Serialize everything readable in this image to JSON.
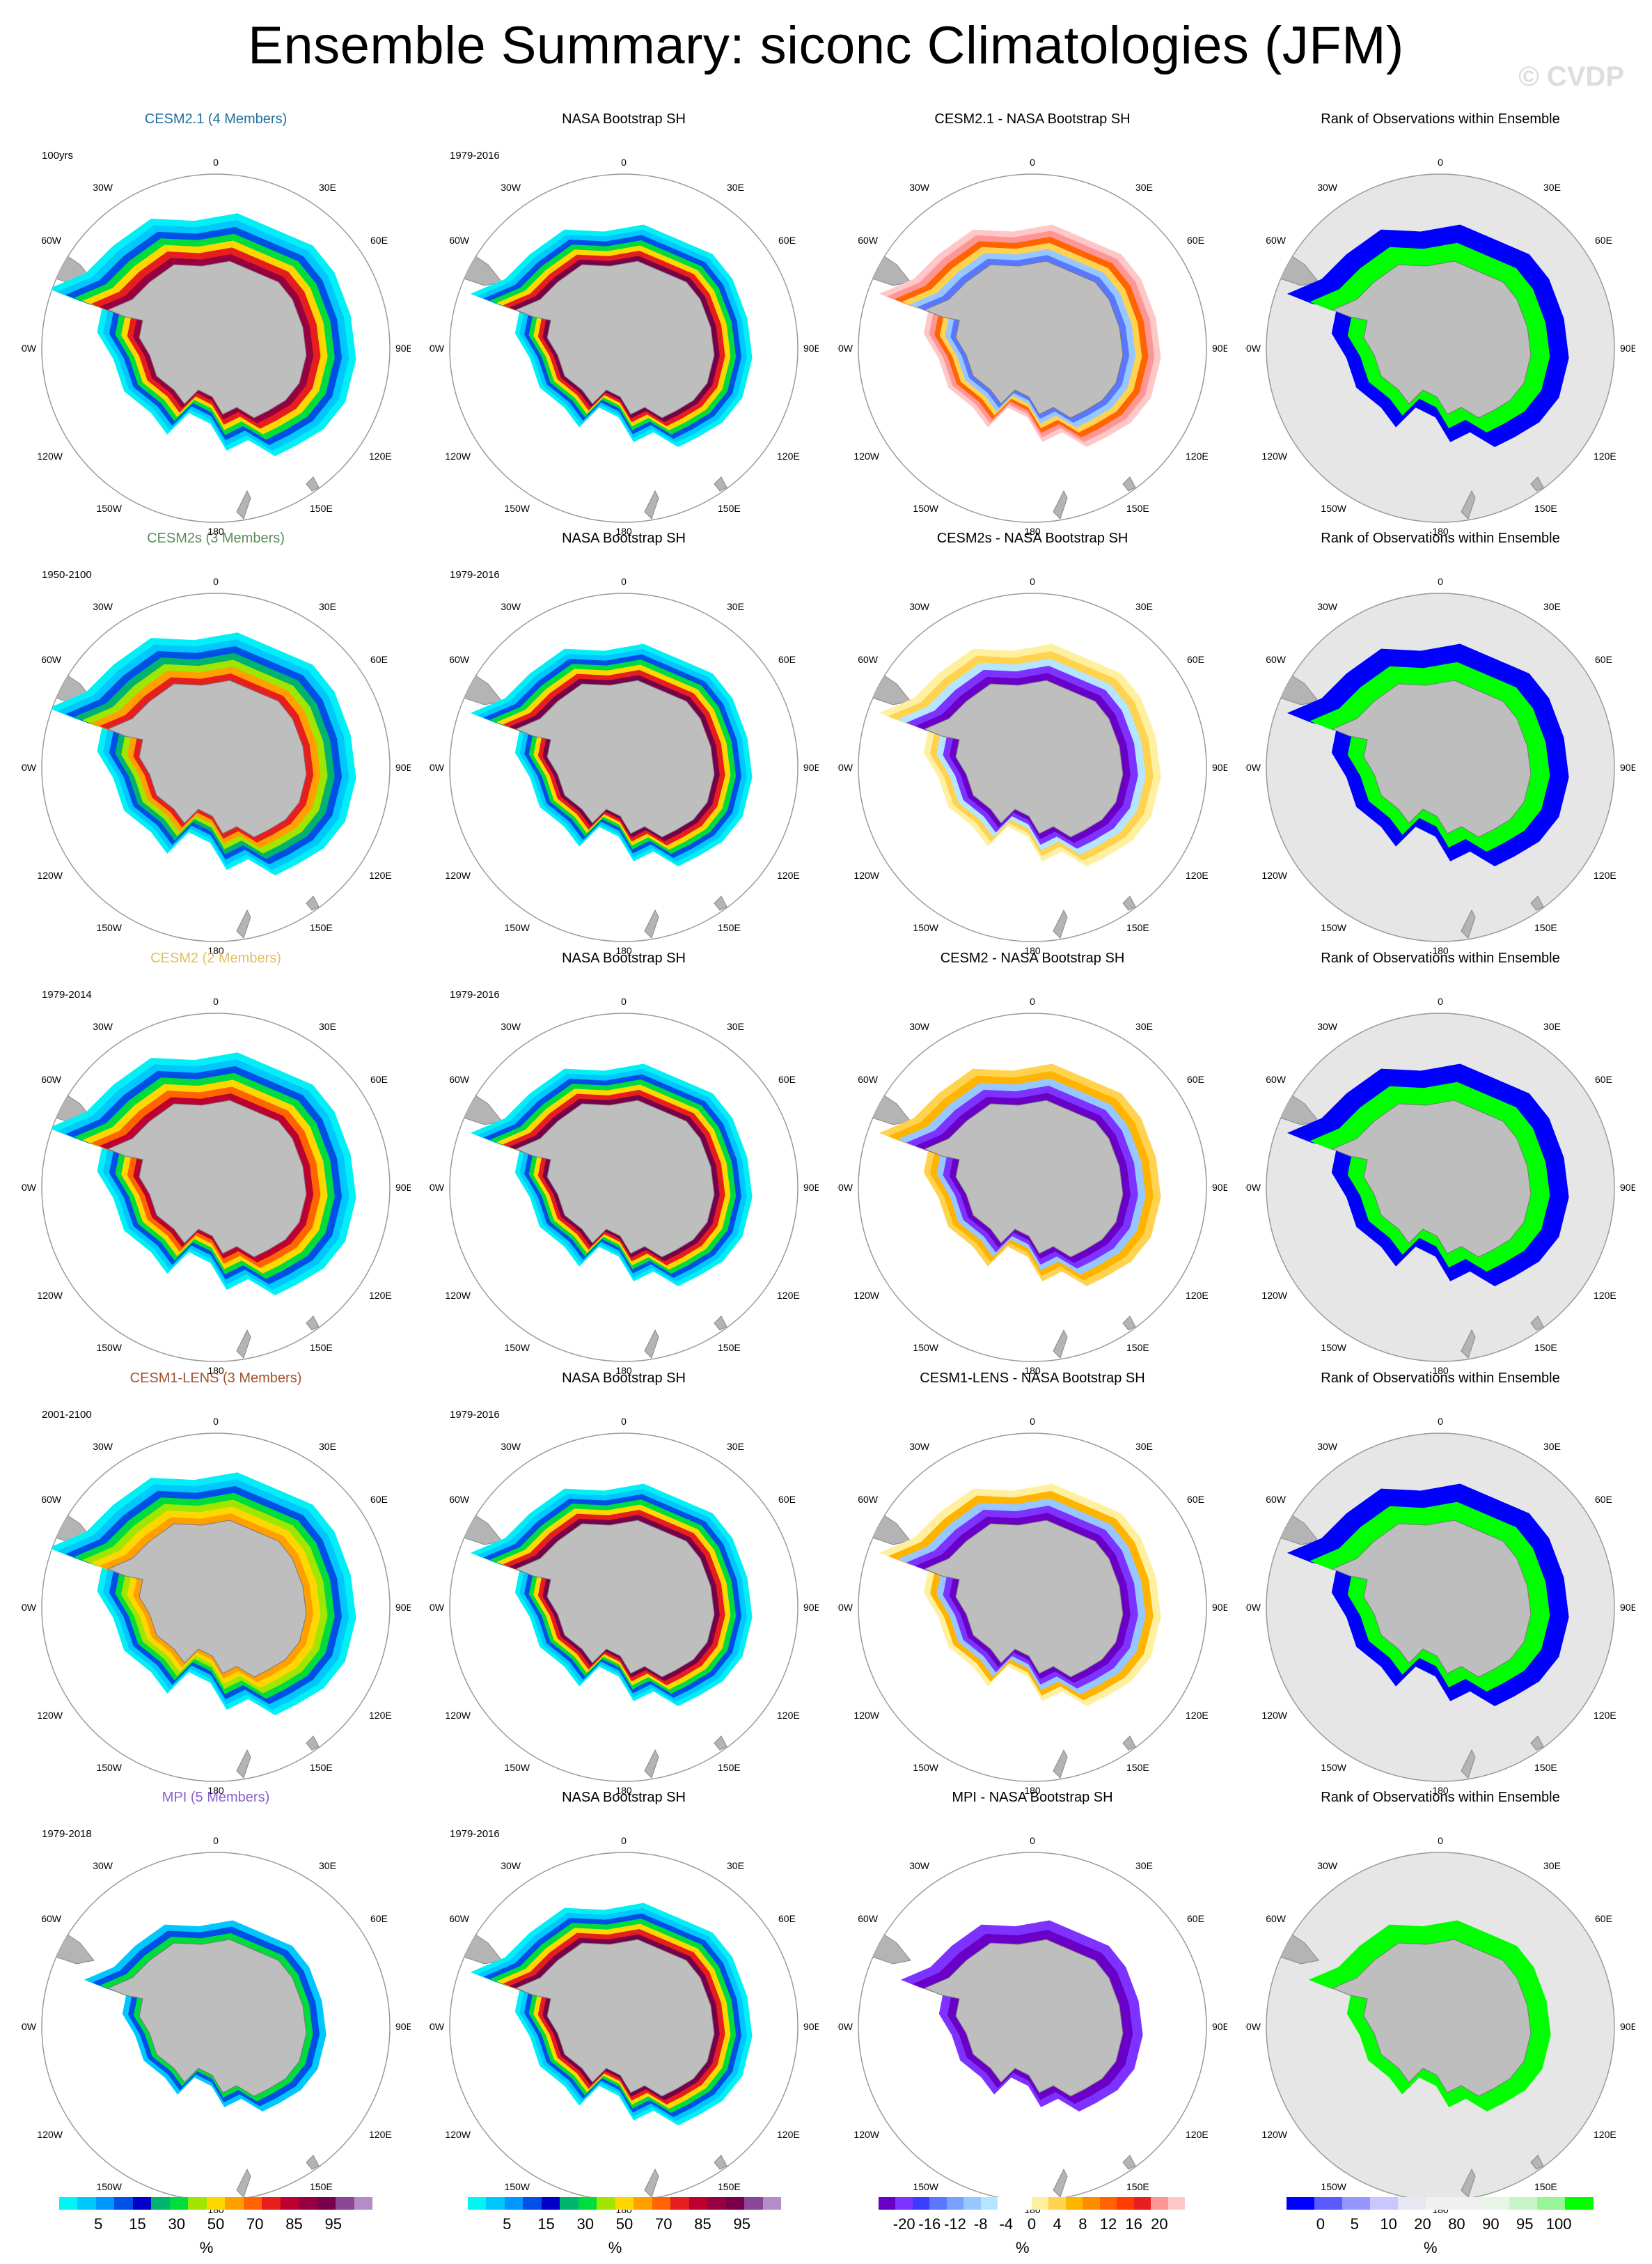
{
  "title": "Ensemble Summary: siconc Climatologies (JFM)",
  "watermark": "© CVDP",
  "longitude_labels": {
    "top": "0",
    "bottom": "180",
    "l1": "30W",
    "l2": "60W",
    "l3": "90W",
    "l4": "120W",
    "l5": "150W",
    "r1": "30E",
    "r2": "60E",
    "r3": "90E",
    "r4": "120E",
    "r5": "150E"
  },
  "rows": [
    {
      "model_title": "CESM2.1 (4 Members)",
      "model_color": "#1f6f9f",
      "model_period": "100yrs",
      "obs_title": "NASA Bootstrap SH",
      "obs_period": "1979-2016",
      "diff_title": "CESM2.1 - NASA Bootstrap SH",
      "rank_title": "Rank of Observations within Ensemble"
    },
    {
      "model_title": "CESM2s (3 Members)",
      "model_color": "#5b8c5a",
      "model_period": "1950-2100",
      "obs_title": "NASA Bootstrap SH",
      "obs_period": "1979-2016",
      "diff_title": "CESM2s - NASA Bootstrap SH",
      "rank_title": "Rank of Observations within Ensemble"
    },
    {
      "model_title": "CESM2 (2 Members)",
      "model_color": "#e0c060",
      "model_period": "1979-2014",
      "obs_title": "NASA Bootstrap SH",
      "obs_period": "1979-2016",
      "diff_title": "CESM2 - NASA Bootstrap SH",
      "rank_title": "Rank of Observations within Ensemble"
    },
    {
      "model_title": "CESM1-LENS (3 Members)",
      "model_color": "#a0522d",
      "model_period": "2001-2100",
      "obs_title": "NASA Bootstrap SH",
      "obs_period": "1979-2016",
      "diff_title": "CESM1-LENS - NASA Bootstrap SH",
      "rank_title": "Rank of Observations within Ensemble"
    },
    {
      "model_title": "MPI (5 Members)",
      "model_color": "#8a5fd0",
      "model_period": "1979-2018",
      "obs_title": "NASA Bootstrap SH",
      "obs_period": "1979-2016",
      "diff_title": "MPI - NASA Bootstrap SH",
      "rank_title": "Rank of Observations within Ensemble"
    }
  ],
  "colorbars": {
    "conc": {
      "ticks": [
        "5",
        "15",
        "30",
        "50",
        "70",
        "85",
        "95"
      ],
      "unit": "%",
      "colors": [
        "#00f5f5",
        "#00c8ff",
        "#0096ff",
        "#0050e6",
        "#0000c8",
        "#00b46e",
        "#00dc3c",
        "#a0e600",
        "#ffd700",
        "#ffa000",
        "#ff6400",
        "#e61e1e",
        "#be0030",
        "#960040",
        "#78004b",
        "#8c4696",
        "#b48cc8"
      ]
    },
    "diff": {
      "ticks": [
        "-20",
        "-16",
        "-12",
        "-8",
        "-4",
        "0",
        "4",
        "8",
        "12",
        "16",
        "20"
      ],
      "unit": "%",
      "colors": [
        "#6a00c8",
        "#7d32ff",
        "#3c3cff",
        "#5a78ff",
        "#78a0ff",
        "#96c8ff",
        "#b4e6ff",
        "#ffffff",
        "#ffffff",
        "#fff0a0",
        "#ffd250",
        "#ffb400",
        "#ff8c00",
        "#ff6400",
        "#ff3c00",
        "#e61e1e",
        "#ff9696",
        "#ffc8c8"
      ]
    },
    "rank": {
      "ticks": [
        "0",
        "5",
        "10",
        "20",
        "80",
        "90",
        "95",
        "100"
      ],
      "unit": "%",
      "colors": [
        "#0000ff",
        "#5a5aff",
        "#9696ff",
        "#c8c8ff",
        "#e6e6f5",
        "#f0f0f0",
        "#f0f0f0",
        "#e6f5e6",
        "#c8f5c8",
        "#96f596",
        "#00ff00"
      ]
    }
  }
}
